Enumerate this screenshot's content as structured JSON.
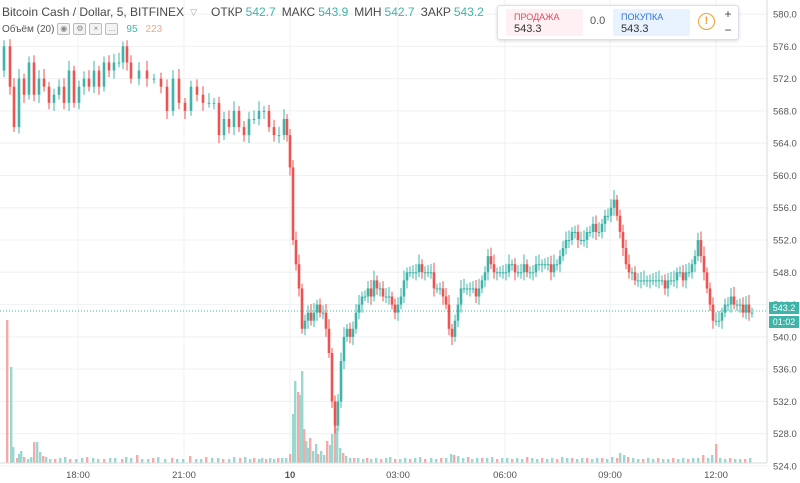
{
  "header": {
    "symbol": "Bitcoin Cash / Dollar, 5, BITFINEX",
    "open_label": "ОТКР",
    "open": "542.7",
    "high_label": "МАКС",
    "high": "543.9",
    "low_label": "МИН",
    "low": "542.7",
    "close_label": "ЗАКР",
    "close": "543.2"
  },
  "volume_legend": {
    "label": "Объём (20)",
    "val1": "95",
    "val2": "223"
  },
  "trade_panel": {
    "sell_label": "ПРОДАЖА",
    "sell_price": "543.3",
    "spread": "0.0",
    "buy_label": "ПОКУПКА",
    "buy_price": "543.3",
    "info_glyph": "!",
    "plus": "+",
    "minus": "−"
  },
  "price_tag": "543.2",
  "time_tag": "01:02",
  "colors": {
    "up": "#3fb4a8",
    "down": "#ef5350",
    "vol_up": "#9ad8cf",
    "vol_down": "#f7a9a7",
    "grid": "#eef0f3"
  },
  "chart_data": {
    "type": "candlestick",
    "symbol": "Bitcoin Cash / Dollar",
    "interval": "5",
    "exchange": "BITFINEX",
    "y_ticks": [
      524.0,
      528.0,
      532.0,
      536.0,
      540.0,
      544.0,
      548.0,
      552.0,
      556.0,
      560.0,
      564.0,
      568.0,
      572.0,
      576.0,
      580.0
    ],
    "ylim": [
      523.5,
      581.0
    ],
    "x_ticks": [
      "18:00",
      "21:00",
      "10",
      "03:00",
      "06:00",
      "09:00",
      "12:00"
    ],
    "last_price": 543.2,
    "price_path": [
      [
        579,
        573
      ],
      [
        5,
        576
      ],
      [
        11,
        571
      ],
      [
        15,
        566
      ],
      [
        20,
        572
      ],
      [
        25,
        570
      ],
      [
        30,
        574
      ],
      [
        35,
        570
      ],
      [
        40,
        572
      ],
      [
        45,
        571
      ],
      [
        50,
        569
      ],
      [
        55,
        570
      ],
      [
        60,
        571
      ],
      [
        65,
        569
      ],
      [
        70,
        573
      ],
      [
        75,
        569
      ],
      [
        80,
        571
      ],
      [
        85,
        572
      ],
      [
        90,
        571
      ],
      [
        95,
        573
      ],
      [
        100,
        571
      ],
      [
        105,
        574
      ],
      [
        110,
        573
      ],
      [
        115,
        574
      ],
      [
        120,
        574
      ],
      [
        124,
        576
      ],
      [
        128,
        574
      ],
      [
        132,
        572
      ],
      [
        140,
        573
      ],
      [
        148,
        572
      ],
      [
        155,
        572
      ],
      [
        162,
        571
      ],
      [
        168,
        568
      ],
      [
        174,
        572
      ],
      [
        180,
        569
      ],
      [
        186,
        568
      ],
      [
        192,
        571
      ],
      [
        198,
        570
      ],
      [
        204,
        569
      ],
      [
        210,
        569
      ],
      [
        215,
        569
      ],
      [
        220,
        565
      ],
      [
        225,
        567
      ],
      [
        230,
        566
      ],
      [
        235,
        568
      ],
      [
        240,
        566
      ],
      [
        245,
        565
      ],
      [
        250,
        567
      ],
      [
        255,
        567
      ],
      [
        260,
        568
      ],
      [
        265,
        568
      ],
      [
        270,
        566
      ],
      [
        275,
        565
      ],
      [
        280,
        565
      ],
      [
        285,
        567
      ],
      [
        288,
        565
      ],
      [
        291,
        561
      ],
      [
        294,
        552
      ],
      [
        297,
        549
      ],
      [
        300,
        546
      ],
      [
        303,
        541
      ],
      [
        306,
        542
      ],
      [
        309,
        543
      ],
      [
        312,
        542
      ],
      [
        315,
        543
      ],
      [
        318,
        544
      ],
      [
        321,
        543
      ],
      [
        324,
        543
      ],
      [
        327,
        541
      ],
      [
        330,
        538
      ],
      [
        333,
        532
      ],
      [
        336,
        529
      ],
      [
        339,
        532
      ],
      [
        342,
        537
      ],
      [
        345,
        540
      ],
      [
        348,
        541
      ],
      [
        351,
        540
      ],
      [
        354,
        541
      ],
      [
        357,
        543
      ],
      [
        360,
        544
      ],
      [
        363,
        545
      ],
      [
        366,
        545
      ],
      [
        369,
        546
      ],
      [
        372,
        545
      ],
      [
        375,
        547
      ],
      [
        378,
        546
      ],
      [
        381,
        546
      ],
      [
        384,
        545
      ],
      [
        387,
        545
      ],
      [
        390,
        545
      ],
      [
        393,
        544
      ],
      [
        396,
        543
      ],
      [
        399,
        544
      ],
      [
        402,
        545
      ],
      [
        405,
        547
      ],
      [
        408,
        548
      ],
      [
        411,
        548
      ],
      [
        414,
        548
      ],
      [
        417,
        548
      ],
      [
        420,
        549
      ],
      [
        423,
        548
      ],
      [
        426,
        548
      ],
      [
        429,
        548
      ],
      [
        432,
        548
      ],
      [
        435,
        546
      ],
      [
        438,
        546
      ],
      [
        441,
        546
      ],
      [
        444,
        545
      ],
      [
        447,
        544
      ],
      [
        450,
        541
      ],
      [
        453,
        540
      ],
      [
        456,
        542
      ],
      [
        459,
        544
      ],
      [
        462,
        546
      ],
      [
        465,
        546
      ],
      [
        468,
        546
      ],
      [
        471,
        546
      ],
      [
        474,
        546
      ],
      [
        477,
        545
      ],
      [
        480,
        546
      ],
      [
        483,
        547
      ],
      [
        486,
        548
      ],
      [
        489,
        550
      ],
      [
        492,
        549
      ],
      [
        495,
        548
      ],
      [
        498,
        548
      ],
      [
        501,
        548
      ],
      [
        504,
        548
      ],
      [
        507,
        548
      ],
      [
        510,
        549
      ],
      [
        513,
        549
      ],
      [
        516,
        548
      ],
      [
        519,
        548
      ],
      [
        522,
        548
      ],
      [
        525,
        549
      ],
      [
        528,
        548
      ],
      [
        531,
        548
      ],
      [
        534,
        548
      ],
      [
        537,
        549
      ],
      [
        540,
        549
      ],
      [
        543,
        549
      ],
      [
        546,
        549
      ],
      [
        549,
        549
      ],
      [
        552,
        548
      ],
      [
        555,
        549
      ],
      [
        558,
        549
      ],
      [
        561,
        550
      ],
      [
        564,
        551
      ],
      [
        567,
        552
      ],
      [
        570,
        552
      ],
      [
        573,
        553
      ],
      [
        576,
        553
      ],
      [
        579,
        552
      ],
      [
        582,
        552
      ],
      [
        585,
        552
      ],
      [
        588,
        553
      ],
      [
        591,
        553
      ],
      [
        594,
        554
      ],
      [
        597,
        553
      ],
      [
        600,
        553
      ],
      [
        603,
        554
      ],
      [
        606,
        555
      ],
      [
        609,
        555
      ],
      [
        612,
        556
      ],
      [
        615,
        557
      ],
      [
        618,
        555
      ],
      [
        621,
        553
      ],
      [
        624,
        551
      ],
      [
        627,
        549
      ],
      [
        630,
        548
      ],
      [
        633,
        548
      ],
      [
        636,
        547
      ],
      [
        639,
        547
      ],
      [
        642,
        547
      ],
      [
        645,
        547
      ],
      [
        648,
        547
      ],
      [
        651,
        547
      ],
      [
        654,
        547
      ],
      [
        657,
        547
      ],
      [
        660,
        547
      ],
      [
        663,
        547
      ],
      [
        666,
        546
      ],
      [
        669,
        547
      ],
      [
        672,
        547
      ],
      [
        675,
        547
      ],
      [
        678,
        548
      ],
      [
        681,
        548
      ],
      [
        684,
        547
      ],
      [
        687,
        548
      ],
      [
        690,
        548
      ],
      [
        693,
        549
      ],
      [
        696,
        550
      ],
      [
        699,
        552
      ],
      [
        702,
        550
      ],
      [
        705,
        548
      ],
      [
        708,
        546
      ],
      [
        711,
        544
      ],
      [
        714,
        542
      ],
      [
        717,
        542
      ],
      [
        720,
        542
      ],
      [
        723,
        543
      ],
      [
        726,
        544
      ],
      [
        729,
        544
      ],
      [
        732,
        545
      ],
      [
        735,
        544
      ],
      [
        738,
        544
      ],
      [
        741,
        544
      ],
      [
        744,
        543
      ],
      [
        747,
        544
      ],
      [
        750,
        543
      ],
      [
        753,
        543
      ]
    ],
    "volume_bars": [
      [
        7,
        143
      ],
      [
        11,
        96
      ],
      [
        13,
        16
      ],
      [
        17,
        5
      ],
      [
        19,
        9
      ],
      [
        21,
        12
      ],
      [
        24,
        6
      ],
      [
        28,
        4
      ],
      [
        31,
        6
      ],
      [
        34,
        21
      ],
      [
        37,
        21
      ],
      [
        40,
        11
      ],
      [
        43,
        7
      ],
      [
        46,
        6
      ],
      [
        50,
        4
      ],
      [
        55,
        4
      ],
      [
        60,
        5
      ],
      [
        65,
        6
      ],
      [
        70,
        4
      ],
      [
        76,
        4
      ],
      [
        82,
        5
      ],
      [
        87,
        6
      ],
      [
        93,
        5
      ],
      [
        98,
        4
      ],
      [
        104,
        4
      ],
      [
        110,
        5
      ],
      [
        115,
        5
      ],
      [
        122,
        4
      ],
      [
        126,
        6
      ],
      [
        131,
        5
      ],
      [
        137,
        8
      ],
      [
        142,
        4
      ],
      [
        148,
        4
      ],
      [
        153,
        5
      ],
      [
        158,
        6
      ],
      [
        165,
        4
      ],
      [
        172,
        5
      ],
      [
        177,
        4
      ],
      [
        183,
        4
      ],
      [
        190,
        7
      ],
      [
        196,
        4
      ],
      [
        201,
        4
      ],
      [
        206,
        6
      ],
      [
        212,
        5
      ],
      [
        218,
        5
      ],
      [
        223,
        4
      ],
      [
        229,
        4
      ],
      [
        234,
        6
      ],
      [
        240,
        5
      ],
      [
        245,
        6
      ],
      [
        250,
        4
      ],
      [
        254,
        5
      ],
      [
        259,
        4
      ],
      [
        262,
        5
      ],
      [
        266,
        4
      ],
      [
        270,
        5
      ],
      [
        274,
        4
      ],
      [
        278,
        5
      ],
      [
        282,
        5
      ],
      [
        286,
        5
      ],
      [
        290,
        9
      ],
      [
        293,
        49
      ],
      [
        295,
        82
      ],
      [
        298,
        71
      ],
      [
        300,
        68
      ],
      [
        302,
        92
      ],
      [
        304,
        34
      ],
      [
        306,
        22
      ],
      [
        308,
        15
      ],
      [
        310,
        25
      ],
      [
        313,
        12
      ],
      [
        316,
        19
      ],
      [
        318,
        9
      ],
      [
        321,
        12
      ],
      [
        324,
        8
      ],
      [
        327,
        22
      ],
      [
        330,
        18
      ],
      [
        332,
        29
      ],
      [
        335,
        60
      ],
      [
        337,
        35
      ],
      [
        340,
        15
      ],
      [
        343,
        10
      ],
      [
        346,
        7
      ],
      [
        350,
        5
      ],
      [
        354,
        5
      ],
      [
        358,
        5
      ],
      [
        363,
        4
      ],
      [
        367,
        5
      ],
      [
        371,
        4
      ],
      [
        376,
        5
      ],
      [
        381,
        4
      ],
      [
        386,
        5
      ],
      [
        390,
        6
      ],
      [
        395,
        4
      ],
      [
        400,
        4
      ],
      [
        405,
        5
      ],
      [
        410,
        4
      ],
      [
        415,
        5
      ],
      [
        420,
        6
      ],
      [
        425,
        4
      ],
      [
        431,
        5
      ],
      [
        436,
        4
      ],
      [
        441,
        5
      ],
      [
        446,
        5
      ],
      [
        451,
        9
      ],
      [
        454,
        8
      ],
      [
        458,
        7
      ],
      [
        463,
        5
      ],
      [
        468,
        6
      ],
      [
        472,
        4
      ],
      [
        477,
        5
      ],
      [
        482,
        5
      ],
      [
        487,
        5
      ],
      [
        492,
        6
      ],
      [
        497,
        4
      ],
      [
        502,
        5
      ],
      [
        507,
        5
      ],
      [
        512,
        4
      ],
      [
        517,
        5
      ],
      [
        522,
        4
      ],
      [
        527,
        6
      ],
      [
        532,
        5
      ],
      [
        537,
        4
      ],
      [
        542,
        5
      ],
      [
        547,
        4
      ],
      [
        552,
        5
      ],
      [
        557,
        4
      ],
      [
        562,
        6
      ],
      [
        567,
        5
      ],
      [
        572,
        5
      ],
      [
        577,
        4
      ],
      [
        582,
        5
      ],
      [
        587,
        5
      ],
      [
        592,
        4
      ],
      [
        597,
        5
      ],
      [
        602,
        5
      ],
      [
        607,
        4
      ],
      [
        612,
        6
      ],
      [
        617,
        5
      ],
      [
        620,
        10
      ],
      [
        624,
        8
      ],
      [
        628,
        6
      ],
      [
        633,
        5
      ],
      [
        638,
        4
      ],
      [
        643,
        4
      ],
      [
        648,
        5
      ],
      [
        653,
        4
      ],
      [
        658,
        5
      ],
      [
        663,
        4
      ],
      [
        668,
        4
      ],
      [
        673,
        5
      ],
      [
        678,
        4
      ],
      [
        683,
        5
      ],
      [
        688,
        4
      ],
      [
        693,
        5
      ],
      [
        698,
        5
      ],
      [
        703,
        8
      ],
      [
        708,
        5
      ],
      [
        712,
        8
      ],
      [
        716,
        19
      ],
      [
        720,
        5
      ],
      [
        725,
        4
      ],
      [
        730,
        5
      ],
      [
        735,
        4
      ],
      [
        740,
        4
      ],
      [
        745,
        4
      ],
      [
        750,
        5
      ]
    ]
  }
}
